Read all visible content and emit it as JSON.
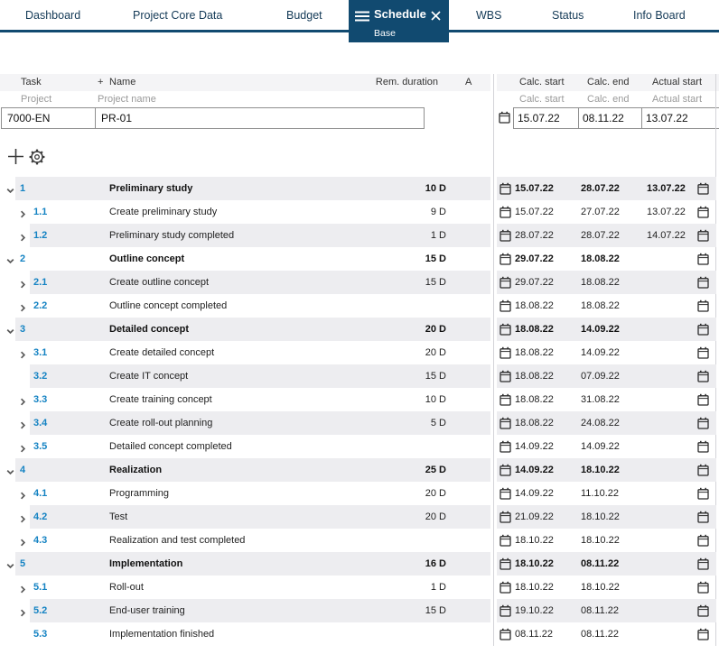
{
  "tabs": [
    "Dashboard",
    "Project Core Data",
    "Budget",
    "WBS",
    "Status",
    "Info Board"
  ],
  "active_tab": {
    "label": "Schedule",
    "sublabel": "Base"
  },
  "colors": {
    "accent_navy": "#114a70",
    "task_number_blue": "#1583c3",
    "row_shade": "#ededf0",
    "header_bg": "#f4f4f6"
  },
  "toolbar": {
    "add_icon": "plus",
    "settings_icon": "gear"
  },
  "table": {
    "columns": {
      "task": "Task",
      "plus": "+",
      "name": "Name",
      "rem_duration": "Rem. duration",
      "a": "A",
      "calc_start": "Calc. start",
      "calc_end": "Calc. end",
      "actual_start": "Actual start"
    },
    "filters": {
      "project": "Project",
      "project_name": "Project name",
      "calc_start": "Calc. start",
      "calc_end": "Calc. end",
      "actual_start": "Actual start"
    },
    "project_row": {
      "task_id": "7000-EN",
      "project_name": "PR-01",
      "calc_start": "15.07.22",
      "calc_end": "08.11.22",
      "actual_start": "13.07.22"
    },
    "rows": [
      {
        "level": 1,
        "num": "1",
        "name": "Preliminary study",
        "duration": "10 D",
        "calc_start": "15.07.22",
        "calc_end": "28.07.22",
        "actual_start": "13.07.22",
        "bold": true,
        "chevron": "down"
      },
      {
        "level": 2,
        "num": "1.1",
        "name": "Create preliminary study",
        "duration": "9 D",
        "calc_start": "15.07.22",
        "calc_end": "27.07.22",
        "actual_start": "13.07.22",
        "bold": false,
        "chevron": "right"
      },
      {
        "level": 2,
        "num": "1.2",
        "name": "Preliminary study completed",
        "duration": "1 D",
        "calc_start": "28.07.22",
        "calc_end": "28.07.22",
        "actual_start": "14.07.22",
        "bold": false,
        "chevron": "right"
      },
      {
        "level": 1,
        "num": "2",
        "name": "Outline concept",
        "duration": "15 D",
        "calc_start": "29.07.22",
        "calc_end": "18.08.22",
        "actual_start": "",
        "bold": true,
        "chevron": "down"
      },
      {
        "level": 2,
        "num": "2.1",
        "name": "Create outline concept",
        "duration": "15 D",
        "calc_start": "29.07.22",
        "calc_end": "18.08.22",
        "actual_start": "",
        "bold": false,
        "chevron": "right"
      },
      {
        "level": 2,
        "num": "2.2",
        "name": "Outline concept completed",
        "duration": "",
        "calc_start": "18.08.22",
        "calc_end": "18.08.22",
        "actual_start": "",
        "bold": false,
        "chevron": "right"
      },
      {
        "level": 1,
        "num": "3",
        "name": "Detailed concept",
        "duration": "20 D",
        "calc_start": "18.08.22",
        "calc_end": "14.09.22",
        "actual_start": "",
        "bold": true,
        "chevron": "down"
      },
      {
        "level": 2,
        "num": "3.1",
        "name": "Create detailed concept",
        "duration": "20 D",
        "calc_start": "18.08.22",
        "calc_end": "14.09.22",
        "actual_start": "",
        "bold": false,
        "chevron": "right"
      },
      {
        "level": 2,
        "num": "3.2",
        "name": "Create IT concept",
        "duration": "15 D",
        "calc_start": "18.08.22",
        "calc_end": "07.09.22",
        "actual_start": "",
        "bold": false,
        "chevron": "none"
      },
      {
        "level": 2,
        "num": "3.3",
        "name": "Create training concept",
        "duration": "10 D",
        "calc_start": "18.08.22",
        "calc_end": "31.08.22",
        "actual_start": "",
        "bold": false,
        "chevron": "right"
      },
      {
        "level": 2,
        "num": "3.4",
        "name": "Create roll-out planning",
        "duration": "5 D",
        "calc_start": "18.08.22",
        "calc_end": "24.08.22",
        "actual_start": "",
        "bold": false,
        "chevron": "right"
      },
      {
        "level": 2,
        "num": "3.5",
        "name": "Detailed concept completed",
        "duration": "",
        "calc_start": "14.09.22",
        "calc_end": "14.09.22",
        "actual_start": "",
        "bold": false,
        "chevron": "right"
      },
      {
        "level": 1,
        "num": "4",
        "name": "Realization",
        "duration": "25 D",
        "calc_start": "14.09.22",
        "calc_end": "18.10.22",
        "actual_start": "",
        "bold": true,
        "chevron": "down"
      },
      {
        "level": 2,
        "num": "4.1",
        "name": "Programming",
        "duration": "20 D",
        "calc_start": "14.09.22",
        "calc_end": "11.10.22",
        "actual_start": "",
        "bold": false,
        "chevron": "right"
      },
      {
        "level": 2,
        "num": "4.2",
        "name": "Test",
        "duration": "20 D",
        "calc_start": "21.09.22",
        "calc_end": "18.10.22",
        "actual_start": "",
        "bold": false,
        "chevron": "right"
      },
      {
        "level": 2,
        "num": "4.3",
        "name": "Realization and test completed",
        "duration": "",
        "calc_start": "18.10.22",
        "calc_end": "18.10.22",
        "actual_start": "",
        "bold": false,
        "chevron": "right"
      },
      {
        "level": 1,
        "num": "5",
        "name": "Implementation",
        "duration": "16 D",
        "calc_start": "18.10.22",
        "calc_end": "08.11.22",
        "actual_start": "",
        "bold": true,
        "chevron": "down"
      },
      {
        "level": 2,
        "num": "5.1",
        "name": "Roll-out",
        "duration": "1 D",
        "calc_start": "18.10.22",
        "calc_end": "18.10.22",
        "actual_start": "",
        "bold": false,
        "chevron": "right"
      },
      {
        "level": 2,
        "num": "5.2",
        "name": "End-user training",
        "duration": "15 D",
        "calc_start": "19.10.22",
        "calc_end": "08.11.22",
        "actual_start": "",
        "bold": false,
        "chevron": "right"
      },
      {
        "level": 2,
        "num": "5.3",
        "name": "Implementation finished",
        "duration": "",
        "calc_start": "08.11.22",
        "calc_end": "08.11.22",
        "actual_start": "",
        "bold": false,
        "chevron": "none"
      }
    ]
  }
}
